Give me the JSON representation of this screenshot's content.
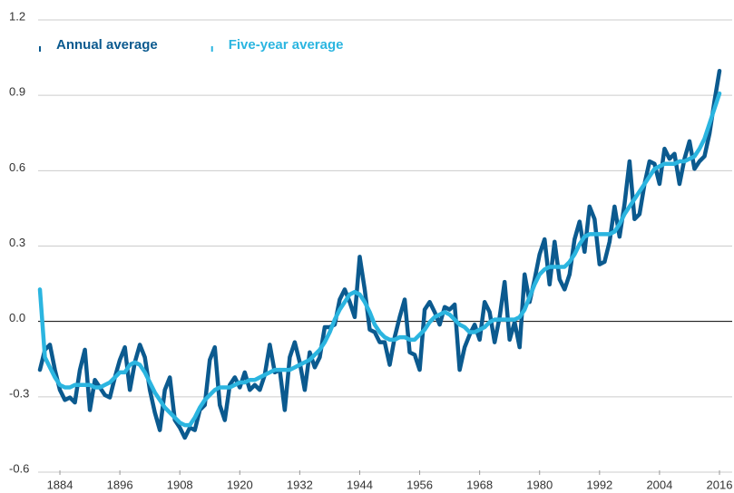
{
  "chart_data": {
    "type": "line",
    "x": [
      1880,
      1881,
      1882,
      1883,
      1884,
      1885,
      1886,
      1887,
      1888,
      1889,
      1890,
      1891,
      1892,
      1893,
      1894,
      1895,
      1896,
      1897,
      1898,
      1899,
      1900,
      1901,
      1902,
      1903,
      1904,
      1905,
      1906,
      1907,
      1908,
      1909,
      1910,
      1911,
      1912,
      1913,
      1914,
      1915,
      1916,
      1917,
      1918,
      1919,
      1920,
      1921,
      1922,
      1923,
      1924,
      1925,
      1926,
      1927,
      1928,
      1929,
      1930,
      1931,
      1932,
      1933,
      1934,
      1935,
      1936,
      1937,
      1938,
      1939,
      1940,
      1941,
      1942,
      1943,
      1944,
      1945,
      1946,
      1947,
      1948,
      1949,
      1950,
      1951,
      1952,
      1953,
      1954,
      1955,
      1956,
      1957,
      1958,
      1959,
      1960,
      1961,
      1962,
      1963,
      1964,
      1965,
      1966,
      1967,
      1968,
      1969,
      1970,
      1971,
      1972,
      1973,
      1974,
      1975,
      1976,
      1977,
      1978,
      1979,
      1980,
      1981,
      1982,
      1983,
      1984,
      1985,
      1986,
      1987,
      1988,
      1989,
      1990,
      1991,
      1992,
      1993,
      1994,
      1995,
      1996,
      1997,
      1998,
      1999,
      2000,
      2001,
      2002,
      2003,
      2004,
      2005,
      2006,
      2007,
      2008,
      2009,
      2010,
      2011,
      2012,
      2013,
      2014,
      2015,
      2016
    ],
    "series": [
      {
        "name": "Annual average",
        "color": "#0b5a8f",
        "values": [
          -0.2,
          -0.12,
          -0.1,
          -0.2,
          -0.28,
          -0.32,
          -0.31,
          -0.33,
          -0.2,
          -0.12,
          -0.36,
          -0.24,
          -0.27,
          -0.3,
          -0.31,
          -0.23,
          -0.16,
          -0.11,
          -0.28,
          -0.17,
          -0.1,
          -0.15,
          -0.28,
          -0.37,
          -0.44,
          -0.28,
          -0.23,
          -0.4,
          -0.43,
          -0.47,
          -0.43,
          -0.44,
          -0.36,
          -0.34,
          -0.16,
          -0.11,
          -0.34,
          -0.4,
          -0.26,
          -0.23,
          -0.27,
          -0.21,
          -0.28,
          -0.26,
          -0.28,
          -0.22,
          -0.1,
          -0.21,
          -0.2,
          -0.36,
          -0.15,
          -0.09,
          -0.17,
          -0.28,
          -0.13,
          -0.19,
          -0.15,
          -0.03,
          -0.03,
          -0.02,
          0.08,
          0.12,
          0.07,
          0.01,
          0.25,
          0.12,
          -0.04,
          -0.05,
          -0.09,
          -0.09,
          -0.18,
          -0.07,
          0.01,
          0.08,
          -0.13,
          -0.14,
          -0.2,
          0.04,
          0.07,
          0.03,
          -0.02,
          0.05,
          0.04,
          0.06,
          -0.2,
          -0.11,
          -0.06,
          -0.02,
          -0.08,
          0.07,
          0.03,
          -0.09,
          0.01,
          0.15,
          -0.08,
          -0.01,
          -0.11,
          0.18,
          0.07,
          0.16,
          0.26,
          0.32,
          0.14,
          0.31,
          0.16,
          0.12,
          0.18,
          0.32,
          0.39,
          0.27,
          0.45,
          0.4,
          0.22,
          0.23,
          0.31,
          0.45,
          0.33,
          0.46,
          0.63,
          0.4,
          0.42,
          0.54,
          0.63,
          0.62,
          0.54,
          0.68,
          0.64,
          0.66,
          0.54,
          0.64,
          0.71,
          0.6,
          0.63,
          0.65,
          0.74,
          0.87,
          0.99
        ]
      },
      {
        "name": "Five-year average",
        "color": "#2bb5e0",
        "values": [
          0.12,
          -0.15,
          -0.19,
          -0.23,
          -0.26,
          -0.27,
          -0.27,
          -0.26,
          -0.26,
          -0.26,
          -0.26,
          -0.27,
          -0.27,
          -0.26,
          -0.25,
          -0.23,
          -0.21,
          -0.21,
          -0.18,
          -0.17,
          -0.18,
          -0.21,
          -0.25,
          -0.29,
          -0.32,
          -0.35,
          -0.37,
          -0.39,
          -0.41,
          -0.42,
          -0.42,
          -0.39,
          -0.35,
          -0.32,
          -0.3,
          -0.28,
          -0.27,
          -0.27,
          -0.27,
          -0.26,
          -0.25,
          -0.25,
          -0.24,
          -0.24,
          -0.23,
          -0.22,
          -0.21,
          -0.2,
          -0.2,
          -0.2,
          -0.2,
          -0.19,
          -0.18,
          -0.17,
          -0.16,
          -0.14,
          -0.12,
          -0.09,
          -0.05,
          0.0,
          0.04,
          0.07,
          0.1,
          0.11,
          0.1,
          0.07,
          0.03,
          -0.02,
          -0.05,
          -0.07,
          -0.08,
          -0.08,
          -0.07,
          -0.07,
          -0.08,
          -0.08,
          -0.06,
          -0.04,
          -0.01,
          0.01,
          0.02,
          0.03,
          0.02,
          0.0,
          -0.02,
          -0.03,
          -0.05,
          -0.05,
          -0.04,
          -0.03,
          -0.01,
          0.0,
          0.0,
          0.0,
          0.0,
          0.0,
          0.01,
          0.04,
          0.09,
          0.14,
          0.18,
          0.2,
          0.21,
          0.21,
          0.21,
          0.21,
          0.23,
          0.26,
          0.3,
          0.33,
          0.34,
          0.34,
          0.34,
          0.34,
          0.34,
          0.35,
          0.38,
          0.42,
          0.45,
          0.48,
          0.51,
          0.54,
          0.57,
          0.6,
          0.61,
          0.62,
          0.62,
          0.62,
          0.63,
          0.63,
          0.64,
          0.65,
          0.68,
          0.72,
          0.78,
          0.84,
          0.9
        ]
      }
    ],
    "xlim": [
      1880,
      2016
    ],
    "xticks": [
      1884,
      1896,
      1908,
      1920,
      1932,
      1944,
      1956,
      1968,
      1980,
      1992,
      2004,
      2016
    ],
    "ylim": [
      -0.6,
      1.2
    ],
    "yticks": [
      -0.6,
      -0.3,
      {
        "value": 0,
        "label": "0.0"
      },
      0.3,
      0.6,
      0.9,
      1.2
    ],
    "grid": true
  }
}
